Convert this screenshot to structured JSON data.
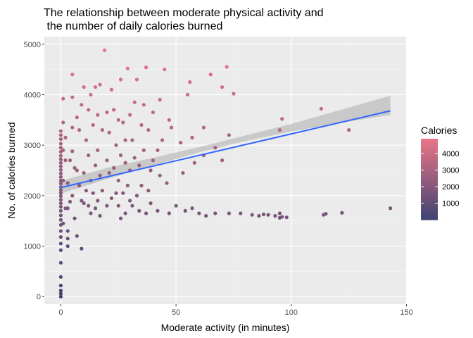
{
  "chart_data": {
    "type": "scatter",
    "title_lines": [
      "The relationship between moderate physical activity and",
      " the number of daily calories burned"
    ],
    "xlabel": "Moderate activity (in minutes)",
    "ylabel": "No. of calories burned",
    "xlim": [
      -7.15,
      150.15
    ],
    "ylim": [
      -150,
      5150
    ],
    "x_ticks": [
      0,
      50,
      100,
      150
    ],
    "y_ticks": [
      0,
      1000,
      2000,
      3000,
      4000,
      5000
    ],
    "grid": true,
    "legend": {
      "title": "Calories",
      "position": "right",
      "labels": [
        "4000",
        "3000",
        "2000",
        "1000"
      ],
      "values": [
        4000,
        3000,
        2000,
        1000
      ],
      "range": [
        0,
        4900
      ],
      "color_low": "#3f4372",
      "color_high": "#ea7687"
    },
    "trend": {
      "x": [
        0,
        143
      ],
      "y": [
        2160,
        3680
      ],
      "ci_x": [
        0,
        20,
        40,
        60,
        80,
        100,
        120,
        143
      ],
      "ci_lower": [
        2040,
        2330,
        2600,
        2860,
        3080,
        3270,
        3430,
        3600
      ],
      "ci_upper": [
        2290,
        2550,
        2750,
        2960,
        3190,
        3420,
        3680,
        3980
      ],
      "line_color": "#3366ff",
      "band_color": "#bdbdbd"
    },
    "points": [
      [
        0,
        0
      ],
      [
        0,
        60
      ],
      [
        0,
        120
      ],
      [
        0,
        220
      ],
      [
        0,
        390
      ],
      [
        0,
        670
      ],
      [
        0,
        920
      ],
      [
        0,
        1050
      ],
      [
        0,
        1180
      ],
      [
        0,
        1300
      ],
      [
        0,
        1420
      ],
      [
        0,
        1520
      ],
      [
        0,
        1610
      ],
      [
        0,
        1700
      ],
      [
        0,
        1780
      ],
      [
        0,
        1850
      ],
      [
        0,
        1920
      ],
      [
        0,
        1990
      ],
      [
        0,
        2050
      ],
      [
        0,
        2110
      ],
      [
        0,
        2170
      ],
      [
        0,
        2240
      ],
      [
        0,
        2300
      ],
      [
        0,
        2370
      ],
      [
        0,
        2440
      ],
      [
        0,
        2510
      ],
      [
        0,
        2580
      ],
      [
        0,
        2650
      ],
      [
        0,
        2720
      ],
      [
        0,
        2790
      ],
      [
        0,
        2870
      ],
      [
        0,
        2950
      ],
      [
        0,
        3030
      ],
      [
        0,
        3120
      ],
      [
        0,
        3200
      ],
      [
        0,
        3280
      ],
      [
        1,
        1450
      ],
      [
        1,
        2300
      ],
      [
        1,
        2900
      ],
      [
        1,
        3450
      ],
      [
        1,
        3920
      ],
      [
        2,
        1750
      ],
      [
        2,
        2700
      ],
      [
        2,
        3150
      ],
      [
        3,
        1000
      ],
      [
        3,
        1150
      ],
      [
        3,
        1300
      ],
      [
        3,
        1750
      ],
      [
        3,
        2250
      ],
      [
        4,
        1880
      ],
      [
        4,
        2700
      ],
      [
        5,
        2000
      ],
      [
        5,
        2880
      ],
      [
        5,
        3350
      ],
      [
        5,
        3950
      ],
      [
        5,
        4400
      ],
      [
        6,
        1550
      ],
      [
        6,
        2550
      ],
      [
        7,
        1200
      ],
      [
        7,
        2500
      ],
      [
        7,
        3550
      ],
      [
        8,
        2200
      ],
      [
        8,
        3300
      ],
      [
        9,
        950
      ],
      [
        9,
        1900
      ],
      [
        9,
        3800
      ],
      [
        10,
        1850
      ],
      [
        10,
        2450
      ],
      [
        10,
        4150
      ],
      [
        11,
        2100
      ],
      [
        11,
        3100
      ],
      [
        12,
        1800
      ],
      [
        12,
        2800
      ],
      [
        12,
        3700
      ],
      [
        13,
        1650
      ],
      [
        13,
        2300
      ],
      [
        13,
        4000
      ],
      [
        14,
        2050
      ],
      [
        14,
        3400
      ],
      [
        15,
        1750
      ],
      [
        15,
        2600
      ],
      [
        15,
        4150
      ],
      [
        16,
        1900
      ],
      [
        16,
        2900
      ],
      [
        16,
        3600
      ],
      [
        17,
        1600
      ],
      [
        17,
        2400
      ],
      [
        17,
        4200
      ],
      [
        18,
        2100
      ],
      [
        18,
        3300
      ],
      [
        19,
        4880
      ],
      [
        20,
        1800
      ],
      [
        20,
        2700
      ],
      [
        20,
        3650
      ],
      [
        21,
        2450
      ],
      [
        21,
        3250
      ],
      [
        22,
        1950
      ],
      [
        22,
        4100
      ],
      [
        23,
        2550
      ],
      [
        23,
        3700
      ],
      [
        24,
        2050
      ],
      [
        24,
        3000
      ],
      [
        25,
        1800
      ],
      [
        25,
        2300
      ],
      [
        25,
        3500
      ],
      [
        26,
        1550
      ],
      [
        26,
        2800
      ],
      [
        26,
        4300
      ],
      [
        27,
        2050
      ],
      [
        27,
        3450
      ],
      [
        28,
        1650
      ],
      [
        28,
        2650
      ],
      [
        28,
        3100
      ],
      [
        29,
        2200
      ],
      [
        29,
        4520
      ],
      [
        30,
        1900
      ],
      [
        30,
        2500
      ],
      [
        30,
        3600
      ],
      [
        31,
        1800
      ],
      [
        31,
        3100
      ],
      [
        32,
        2750
      ],
      [
        32,
        3850
      ],
      [
        33,
        2000
      ],
      [
        33,
        4300
      ],
      [
        34,
        1700
      ],
      [
        34,
        2600
      ],
      [
        35,
        2200
      ],
      [
        35,
        3400
      ],
      [
        36,
        2900
      ],
      [
        36,
        3800
      ],
      [
        37,
        1650
      ],
      [
        37,
        4540
      ],
      [
        38,
        2100
      ],
      [
        38,
        3300
      ],
      [
        39,
        1850
      ],
      [
        39,
        2500
      ],
      [
        40,
        2700
      ],
      [
        40,
        3650
      ],
      [
        42,
        1700
      ],
      [
        42,
        2900
      ],
      [
        43,
        2400
      ],
      [
        43,
        3900
      ],
      [
        44,
        3100
      ],
      [
        45,
        4500
      ],
      [
        46,
        2250
      ],
      [
        47,
        3500
      ],
      [
        47,
        1650
      ],
      [
        48,
        3350
      ],
      [
        50,
        1800
      ],
      [
        52,
        3050
      ],
      [
        53,
        2450
      ],
      [
        54,
        1700
      ],
      [
        55,
        4000
      ],
      [
        56,
        4250
      ],
      [
        57,
        1750
      ],
      [
        57,
        3150
      ],
      [
        58,
        2650
      ],
      [
        60,
        1650
      ],
      [
        62,
        2800
      ],
      [
        62,
        3350
      ],
      [
        63,
        1600
      ],
      [
        65,
        4400
      ],
      [
        67,
        2950
      ],
      [
        67,
        1650
      ],
      [
        70,
        2700
      ],
      [
        70,
        4150
      ],
      [
        72,
        4550
      ],
      [
        73,
        1650
      ],
      [
        73,
        3200
      ],
      [
        75,
        4020
      ],
      [
        78,
        1650
      ],
      [
        83,
        1620
      ],
      [
        86,
        1600
      ],
      [
        88,
        1630
      ],
      [
        90,
        1620
      ],
      [
        93,
        1600
      ],
      [
        95,
        1560
      ],
      [
        95,
        1650
      ],
      [
        95,
        3300
      ],
      [
        96,
        3520
      ],
      [
        96,
        1580
      ],
      [
        98,
        1570
      ],
      [
        113,
        3720
      ],
      [
        114,
        1620
      ],
      [
        115,
        1640
      ],
      [
        122,
        1660
      ],
      [
        125,
        3300
      ],
      [
        143,
        1750
      ]
    ]
  }
}
